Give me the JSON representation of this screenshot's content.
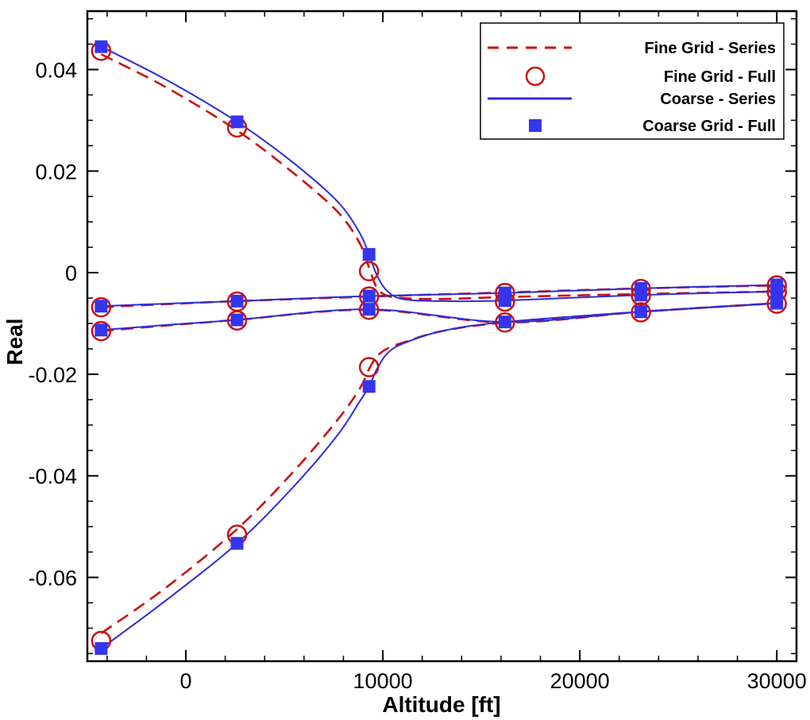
{
  "chart_data": {
    "type": "line",
    "xlabel": "Altitude [ft]",
    "ylabel": "Real",
    "xlim": [
      -5000,
      31000
    ],
    "ylim": [
      -0.0765,
      0.0515
    ],
    "x_ticks": [
      0,
      10000,
      20000,
      30000
    ],
    "y_ticks": [
      0.04,
      0.02,
      0,
      -0.02,
      -0.04,
      -0.06
    ],
    "y_tick_labels": [
      "0.04",
      "0.02",
      "0",
      "-0.02",
      "-0.04",
      "-0.06"
    ],
    "grid": false,
    "legend_position": "top-right",
    "legend": [
      {
        "label": "Fine Grid - Series",
        "style": "dashed-line",
        "color": "#cc1111"
      },
      {
        "label": "Fine Grid - Full",
        "style": "open-circle",
        "color": "#cc1111"
      },
      {
        "label": "Coarse - Series",
        "style": "solid-line",
        "color": "#2b2bdd"
      },
      {
        "label": "Coarse Grid - Full",
        "style": "filled-square",
        "color": "#3535ee"
      }
    ],
    "fine_full_points": [
      {
        "x": -4300,
        "y": 0.0437
      },
      {
        "x": 2600,
        "y": 0.0286
      },
      {
        "x": 9300,
        "y": 0.0003
      },
      {
        "x": -4300,
        "y": -0.0068
      },
      {
        "x": 2600,
        "y": -0.0057
      },
      {
        "x": 9300,
        "y": -0.0047
      },
      {
        "x": -4300,
        "y": -0.0115
      },
      {
        "x": 2600,
        "y": -0.0094
      },
      {
        "x": 9300,
        "y": -0.0073
      },
      {
        "x": 9300,
        "y": -0.0186
      },
      {
        "x": 2600,
        "y": -0.0516
      },
      {
        "x": -4300,
        "y": -0.0725
      },
      {
        "x": 16200,
        "y": -0.004
      },
      {
        "x": 16200,
        "y": -0.0057
      },
      {
        "x": 16200,
        "y": -0.0098
      },
      {
        "x": 23100,
        "y": -0.0032
      },
      {
        "x": 23100,
        "y": -0.0045
      },
      {
        "x": 23100,
        "y": -0.0078
      },
      {
        "x": 30000,
        "y": -0.0025
      },
      {
        "x": 30000,
        "y": -0.0038
      },
      {
        "x": 30000,
        "y": -0.0061
      }
    ],
    "coarse_full_points": [
      {
        "x": -4300,
        "y": 0.0445
      },
      {
        "x": 2600,
        "y": 0.0297
      },
      {
        "x": 9300,
        "y": 0.0036
      },
      {
        "x": -4300,
        "y": -0.0066
      },
      {
        "x": 2600,
        "y": -0.0056
      },
      {
        "x": 9300,
        "y": -0.0046
      },
      {
        "x": -4300,
        "y": -0.0113
      },
      {
        "x": 2600,
        "y": -0.0093
      },
      {
        "x": 9300,
        "y": -0.0072
      },
      {
        "x": 9300,
        "y": -0.0224
      },
      {
        "x": 2600,
        "y": -0.0533
      },
      {
        "x": -4300,
        "y": -0.074
      },
      {
        "x": 16200,
        "y": -0.004
      },
      {
        "x": 16200,
        "y": -0.0055
      },
      {
        "x": 16200,
        "y": -0.0097
      },
      {
        "x": 23100,
        "y": -0.0031
      },
      {
        "x": 23100,
        "y": -0.0044
      },
      {
        "x": 23100,
        "y": -0.0077
      },
      {
        "x": 30000,
        "y": -0.0024
      },
      {
        "x": 30000,
        "y": -0.0037
      },
      {
        "x": 30000,
        "y": -0.006
      }
    ],
    "series": [
      {
        "name": "Fine Grid - Series",
        "style": "dashed",
        "color": "#cc1111",
        "x": [
          -4300,
          -1000,
          2600,
          5500,
          7700,
          8800,
          9300,
          9700,
          10200,
          11000,
          13000,
          16200,
          23100,
          30000
        ],
        "y": [
          0.043,
          0.0365,
          0.028,
          0.0195,
          0.012,
          0.006,
          0.001,
          -0.003,
          -0.0045,
          -0.005,
          -0.0052,
          -0.0048,
          -0.0042,
          -0.0037
        ]
      },
      {
        "name": "Fine Grid - Series",
        "style": "dashed",
        "color": "#cc1111",
        "x": [
          -4300,
          -1000,
          2600,
          9300,
          16200,
          23100,
          30000
        ],
        "y": [
          -0.0068,
          -0.0062,
          -0.0056,
          -0.0047,
          -0.0039,
          -0.0031,
          -0.0025
        ]
      },
      {
        "name": "Fine Grid - Series",
        "style": "dashed",
        "color": "#cc1111",
        "x": [
          -4300,
          -1000,
          2600,
          9300,
          16200,
          23100,
          30000
        ],
        "y": [
          -0.0115,
          -0.0104,
          -0.0093,
          -0.0073,
          -0.0098,
          -0.0077,
          -0.006
        ]
      },
      {
        "name": "Fine Grid - Series",
        "style": "dashed",
        "color": "#cc1111",
        "x": [
          -4300,
          -1000,
          2600,
          5500,
          7700,
          8800,
          9300,
          9700,
          10200,
          11000,
          13000,
          16200,
          23100,
          30000
        ],
        "y": [
          -0.071,
          -0.062,
          -0.0505,
          -0.039,
          -0.029,
          -0.023,
          -0.019,
          -0.0165,
          -0.015,
          -0.0138,
          -0.0115,
          -0.0098,
          -0.0077,
          -0.006
        ]
      },
      {
        "name": "Coarse - Series",
        "style": "solid",
        "color": "#2b2bdd",
        "x": [
          -4300,
          -1000,
          2600,
          5500,
          7700,
          8800,
          9300,
          9700,
          10200,
          11000,
          13000,
          16200,
          23100,
          30000
        ],
        "y": [
          0.0445,
          0.038,
          0.0297,
          0.0215,
          0.014,
          0.008,
          0.0036,
          -0.0005,
          -0.0035,
          -0.0052,
          -0.0056,
          -0.0055,
          -0.0044,
          -0.0037
        ]
      },
      {
        "name": "Coarse - Series",
        "style": "solid",
        "color": "#2b2bdd",
        "x": [
          -4300,
          -1000,
          2600,
          9300,
          16200,
          23100,
          30000
        ],
        "y": [
          -0.0066,
          -0.0061,
          -0.0056,
          -0.0046,
          -0.004,
          -0.0031,
          -0.0024
        ]
      },
      {
        "name": "Coarse - Series",
        "style": "solid",
        "color": "#2b2bdd",
        "x": [
          -4300,
          -1000,
          2600,
          9300,
          16200,
          23100,
          30000
        ],
        "y": [
          -0.0113,
          -0.0103,
          -0.0093,
          -0.0072,
          -0.0097,
          -0.0077,
          -0.006
        ]
      },
      {
        "name": "Coarse - Series",
        "style": "solid",
        "color": "#2b2bdd",
        "x": [
          -4300,
          -1000,
          2600,
          5500,
          7700,
          8800,
          9300,
          9700,
          10200,
          11000,
          13000,
          16200,
          23100,
          30000
        ],
        "y": [
          -0.074,
          -0.0645,
          -0.0533,
          -0.042,
          -0.032,
          -0.0255,
          -0.0224,
          -0.019,
          -0.016,
          -0.014,
          -0.0115,
          -0.0097,
          -0.0077,
          -0.006
        ]
      }
    ]
  }
}
